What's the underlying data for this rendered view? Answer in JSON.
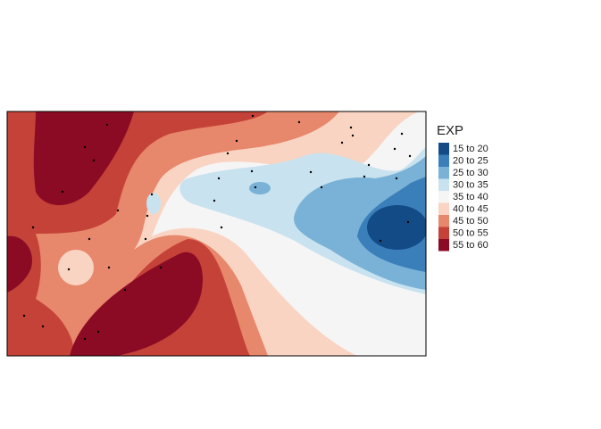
{
  "legend": {
    "title": "EXP",
    "items": [
      {
        "label": "15 to 20",
        "color": "#134b87"
      },
      {
        "label": "20 to 25",
        "color": "#3a7fba"
      },
      {
        "label": "25 to 30",
        "color": "#79b2d6"
      },
      {
        "label": "30 to 35",
        "color": "#c9e2ef"
      },
      {
        "label": "35 to 40",
        "color": "#f5f5f5"
      },
      {
        "label": "40 to 45",
        "color": "#f9d4c2"
      },
      {
        "label": "45 to 50",
        "color": "#e7876c"
      },
      {
        "label": "50 to 55",
        "color": "#c54238"
      },
      {
        "label": "55 to 60",
        "color": "#8b0b24"
      }
    ]
  }
}
